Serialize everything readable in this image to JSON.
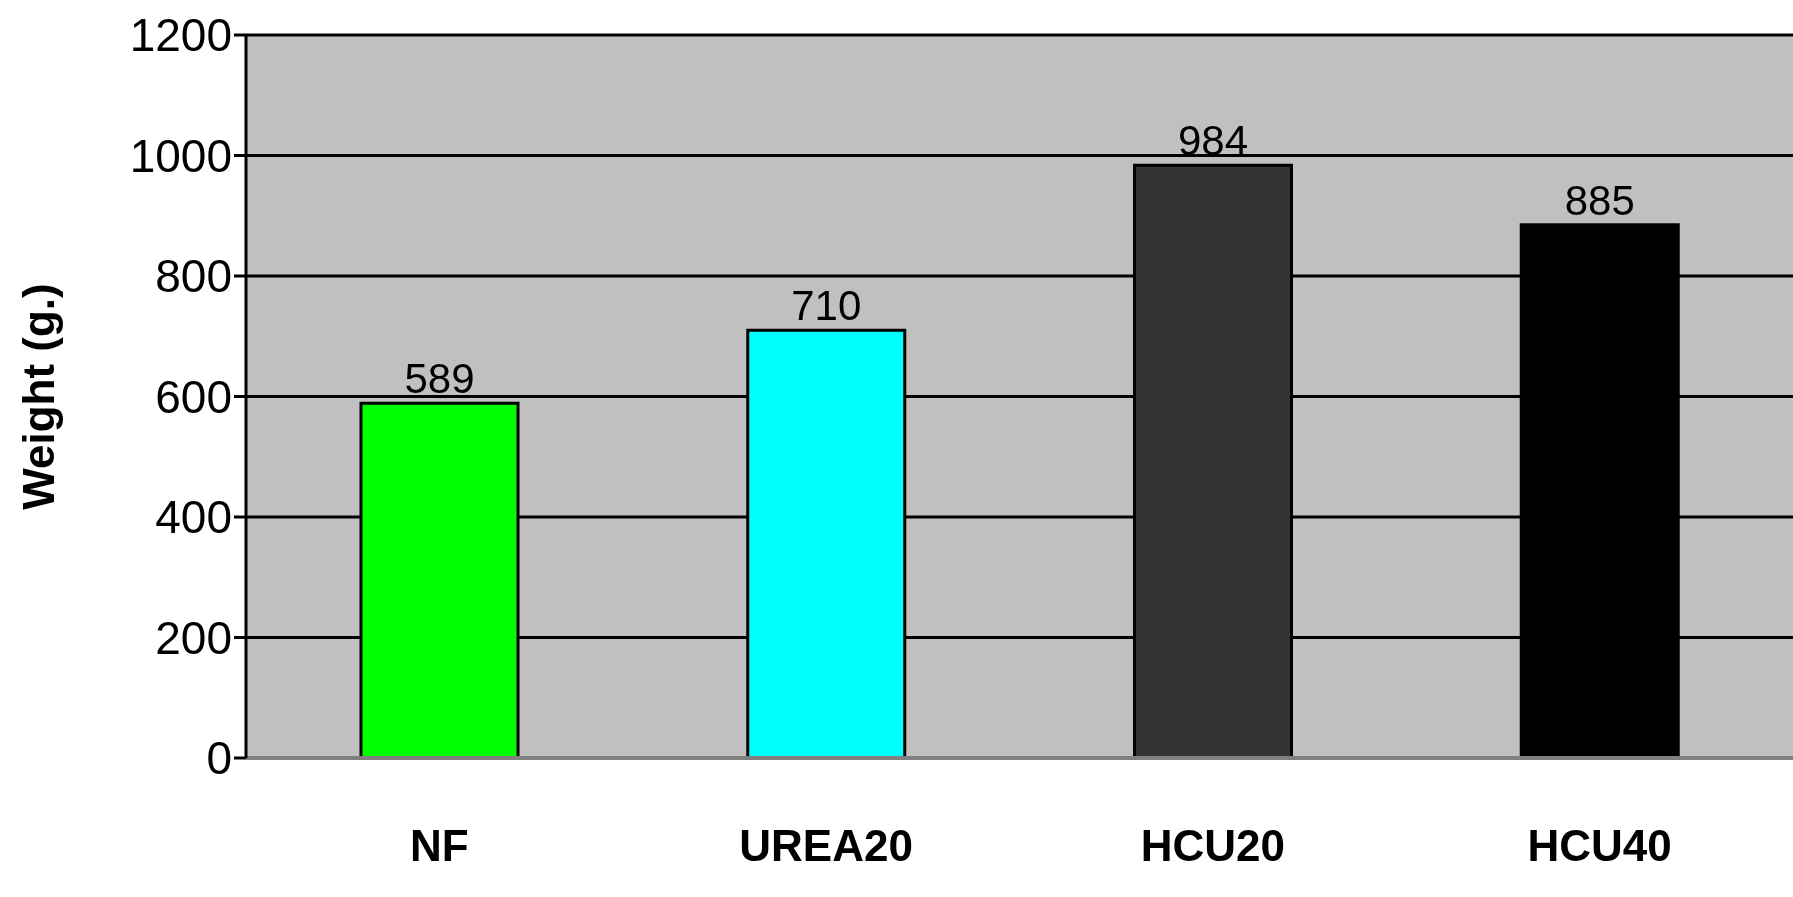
{
  "chart_data": {
    "type": "bar",
    "ylabel": "Weight (g.)",
    "categories": [
      "NF",
      "UREA20",
      "HCU20",
      "HCU40"
    ],
    "values": [
      589,
      710,
      984,
      885
    ],
    "colors": [
      "#00ff00",
      "#00ffff",
      "#333333",
      "#000000"
    ],
    "ylim": [
      0,
      1200
    ],
    "yticks": [
      0,
      200,
      400,
      600,
      800,
      1000,
      1200
    ],
    "grid": "y",
    "data_labels": true
  }
}
